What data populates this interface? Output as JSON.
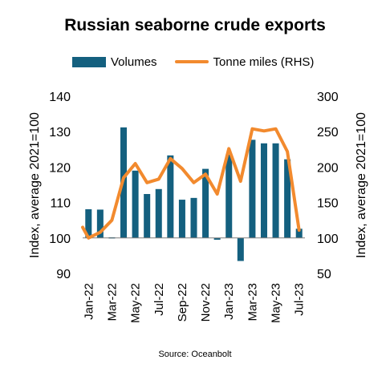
{
  "chart_data": {
    "type": "bar+line",
    "title": "Russian seaborne crude exports",
    "ylabel": "Index, average 2021=100",
    "y2label": "Index, average 2021=100",
    "ylim": [
      90,
      140
    ],
    "y2lim": [
      50,
      300
    ],
    "yticks": [
      90,
      100,
      110,
      120,
      130,
      140
    ],
    "y2ticks": [
      50,
      100,
      150,
      200,
      250,
      300
    ],
    "categories": [
      "Jan-22",
      "Feb-22",
      "Mar-22",
      "Apr-22",
      "May-22",
      "Jun-22",
      "Jul-22",
      "Aug-22",
      "Sep-22",
      "Oct-22",
      "Nov-22",
      "Dec-22",
      "Jan-23",
      "Feb-23",
      "Mar-23",
      "Apr-23",
      "May-23",
      "Jun-23",
      "Jul-23"
    ],
    "xtick_labels": [
      "Jan-22",
      "",
      "Mar-22",
      "",
      "May-22",
      "",
      "Jul-22",
      "",
      "Sep-22",
      "",
      "Nov-22",
      "",
      "Jan-23",
      "",
      "Mar-23",
      "",
      "May-23",
      "",
      "Jul-23"
    ],
    "series": [
      {
        "name": "Volumes",
        "type": "bar",
        "axis": "left",
        "color": "#14607f",
        "values": [
          108.1,
          108.0,
          100.2,
          131.2,
          119.0,
          112.4,
          113.8,
          123.3,
          110.8,
          111.3,
          119.5,
          99.5,
          123.5,
          93.5,
          127.7,
          126.7,
          126.7,
          122.2,
          102.6
        ]
      },
      {
        "name": "Tonne miles (RHS)",
        "type": "line",
        "axis": "right",
        "color": "#f28a2e",
        "values": [
          100,
          108,
          125,
          185,
          205,
          178,
          183,
          212,
          198,
          178,
          190,
          162,
          226,
          180,
          254,
          251,
          254,
          222,
          111
        ],
        "start_value": 115
      }
    ],
    "grid": false,
    "legend_position": "top"
  },
  "legend": {
    "bar_label": "Volumes",
    "line_label": "Tonne miles (RHS)"
  },
  "source": "Source: Oceanbolt"
}
